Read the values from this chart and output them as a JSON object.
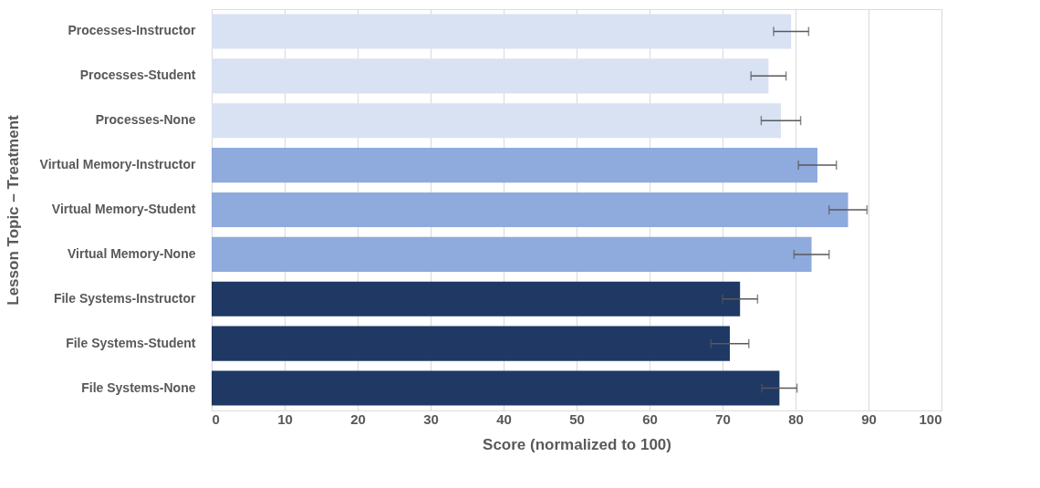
{
  "chart_data": {
    "type": "bar",
    "orientation": "horizontal",
    "xlabel": "Score (normalized to 100)",
    "ylabel": "Lesson Topic – Treatment",
    "categories": [
      "Processes-Instructor",
      "Processes-Student",
      "Processes-None",
      "Virtual Memory-Instructor",
      "Virtual Memory-Student",
      "Virtual Memory-None",
      "File Systems-Instructor",
      "File Systems-Student",
      "File Systems-None"
    ],
    "values": [
      79.4,
      76.3,
      78.0,
      83.0,
      87.2,
      82.2,
      72.4,
      71.0,
      77.8
    ],
    "errors": [
      2.4,
      2.4,
      2.7,
      2.6,
      2.6,
      2.4,
      2.4,
      2.6,
      2.4
    ],
    "colors": [
      "#d9e2f3",
      "#d9e2f3",
      "#d9e2f3",
      "#8faadc",
      "#8faadc",
      "#8faadc",
      "#1f3864",
      "#1f3864",
      "#1f3864"
    ],
    "xlim": [
      0,
      100
    ],
    "xticks": [
      0,
      10,
      20,
      30,
      40,
      50,
      60,
      70,
      80,
      90,
      100
    ],
    "grid": "x",
    "legend": false
  }
}
